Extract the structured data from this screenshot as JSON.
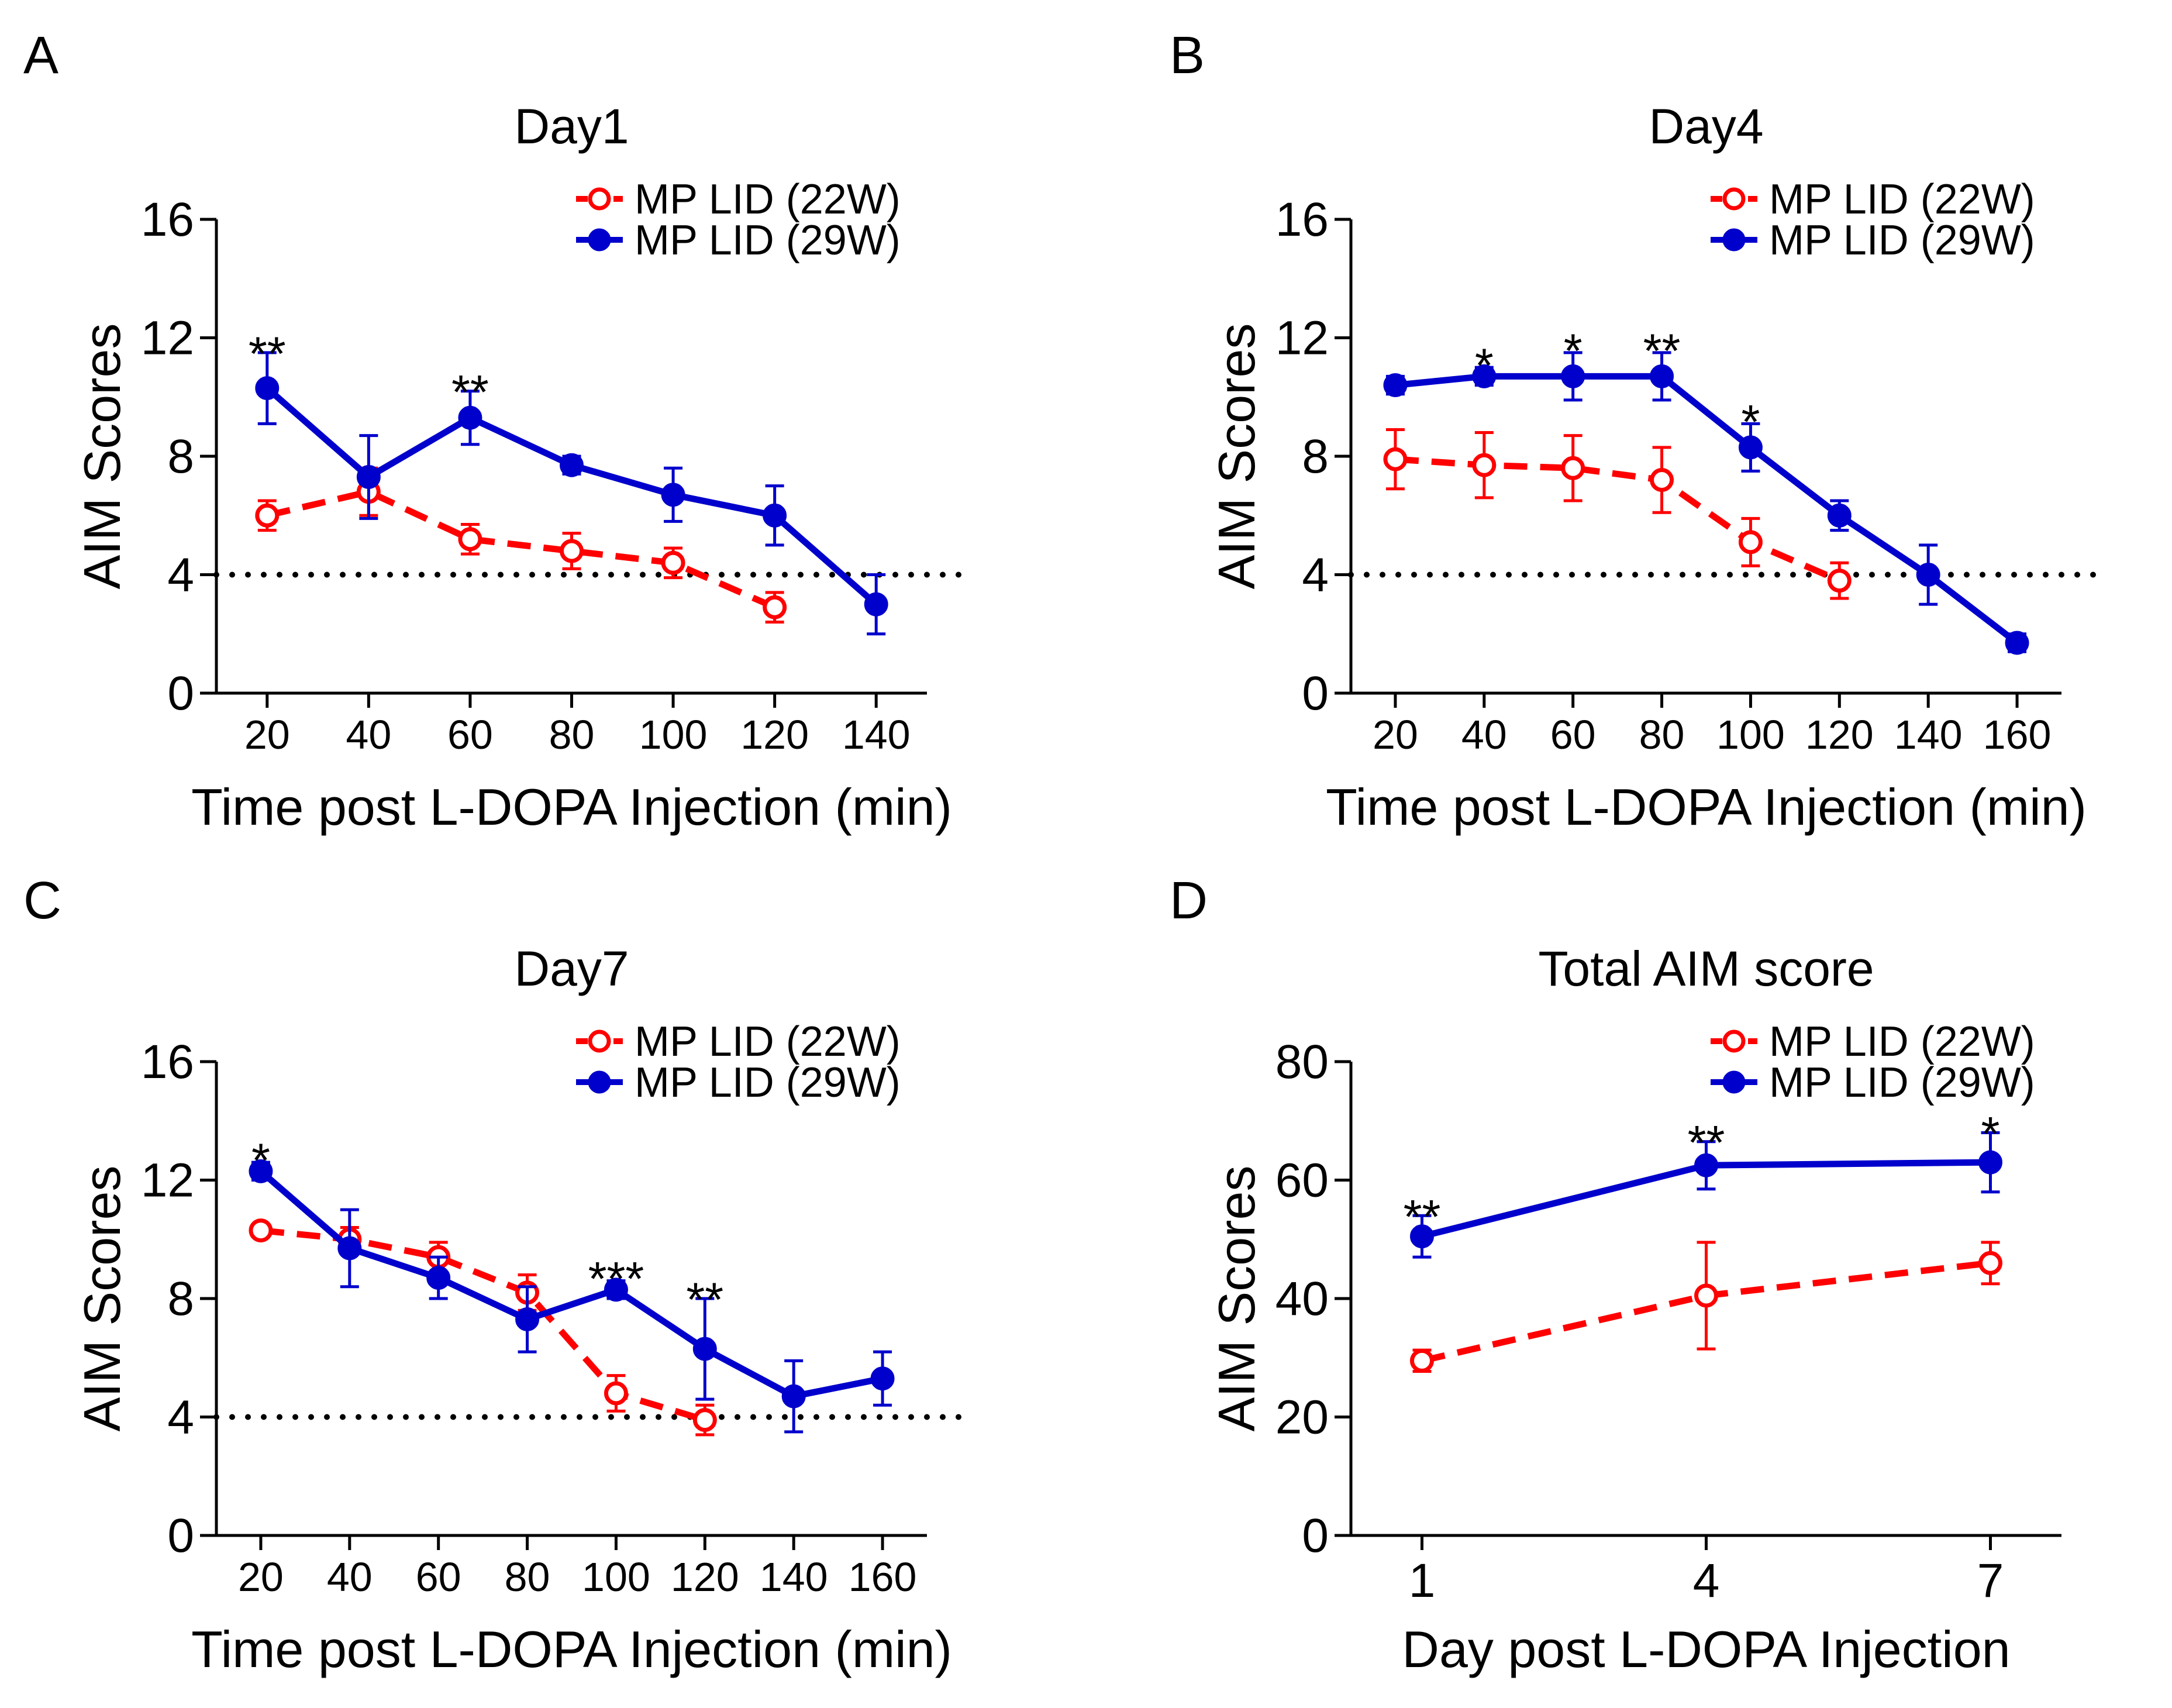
{
  "colors": {
    "series_22w": "#ff0000",
    "series_29w": "#0000cc",
    "axis": "#000000"
  },
  "chart_data": [
    {
      "panel": "A",
      "type": "line",
      "title": "Day1",
      "xlabel": "Time post L-DOPA Injection (min)",
      "ylabel": "AIM Scores",
      "categories": [
        "20",
        "40",
        "60",
        "80",
        "100",
        "120",
        "140"
      ],
      "x_ticks": [
        "20",
        "40",
        "60",
        "80",
        "100",
        "120",
        "140"
      ],
      "ylim": [
        0,
        16
      ],
      "y_ticks": [
        "0",
        "4",
        "8",
        "12",
        "16"
      ],
      "reference_line": 4,
      "legend": "top-right",
      "series": [
        {
          "name": "MP LID (22W)",
          "style": "dashed-open",
          "x": [
            "20",
            "40",
            "60",
            "80",
            "100",
            "120"
          ],
          "values": [
            6.0,
            6.8,
            5.2,
            4.8,
            4.4,
            2.9
          ],
          "errors": [
            0.5,
            0.8,
            0.5,
            0.6,
            0.5,
            0.5
          ]
        },
        {
          "name": "MP LID (29W)",
          "style": "solid-filled",
          "x": [
            "20",
            "40",
            "60",
            "80",
            "100",
            "120",
            "140"
          ],
          "values": [
            10.3,
            7.3,
            9.3,
            7.7,
            6.7,
            6.0,
            3.0
          ],
          "errors": [
            1.2,
            1.4,
            0.9,
            0.3,
            0.9,
            1.0,
            1.0
          ]
        }
      ],
      "annotations": [
        {
          "x": "20",
          "y": 11.5,
          "text": "**"
        },
        {
          "x": "60",
          "y": 10.2,
          "text": "**"
        }
      ]
    },
    {
      "panel": "B",
      "type": "line",
      "title": "Day4",
      "xlabel": "Time post L-DOPA Injection (min)",
      "ylabel": "AIM Scores",
      "categories": [
        "20",
        "40",
        "60",
        "80",
        "100",
        "120",
        "140",
        "160"
      ],
      "x_ticks": [
        "20",
        "40",
        "60",
        "80",
        "100",
        "120",
        "140",
        "160"
      ],
      "ylim": [
        0,
        16
      ],
      "y_ticks": [
        "0",
        "4",
        "8",
        "12",
        "16"
      ],
      "reference_line": 4,
      "legend": "top-right",
      "series": [
        {
          "name": "MP LID (22W)",
          "style": "dashed-open",
          "x": [
            "20",
            "40",
            "60",
            "80",
            "100",
            "120"
          ],
          "values": [
            7.9,
            7.7,
            7.6,
            7.2,
            5.1,
            3.8
          ],
          "errors": [
            1.0,
            1.1,
            1.1,
            1.1,
            0.8,
            0.6
          ]
        },
        {
          "name": "MP LID (29W)",
          "style": "solid-filled",
          "x": [
            "20",
            "40",
            "60",
            "80",
            "100",
            "120",
            "140",
            "160"
          ],
          "values": [
            10.4,
            10.7,
            10.7,
            10.7,
            8.3,
            6.0,
            4.0,
            1.7
          ],
          "errors": [
            0.3,
            0.3,
            0.8,
            0.8,
            0.8,
            0.5,
            1.0,
            0.3
          ]
        }
      ],
      "annotations": [
        {
          "x": "40",
          "y": 11.1,
          "text": "*"
        },
        {
          "x": "60",
          "y": 11.6,
          "text": "*"
        },
        {
          "x": "80",
          "y": 11.6,
          "text": "**"
        },
        {
          "x": "100",
          "y": 9.2,
          "text": "*"
        }
      ]
    },
    {
      "panel": "C",
      "type": "line",
      "title": "Day7",
      "xlabel": "Time post L-DOPA Injection (min)",
      "ylabel": "AIM Scores",
      "categories": [
        "20",
        "40",
        "60",
        "80",
        "100",
        "120",
        "140",
        "160"
      ],
      "x_ticks": [
        "20",
        "40",
        "60",
        "80",
        "100",
        "120",
        "140",
        "160"
      ],
      "ylim": [
        0,
        16
      ],
      "y_ticks": [
        "0",
        "4",
        "8",
        "12",
        "16"
      ],
      "reference_line": 4,
      "legend": "top-right",
      "series": [
        {
          "name": "MP LID (22W)",
          "style": "dashed-open",
          "x": [
            "20",
            "40",
            "60",
            "80",
            "100",
            "120"
          ],
          "values": [
            10.3,
            10.0,
            9.4,
            8.2,
            4.8,
            3.9
          ],
          "errors": [
            0.2,
            0.4,
            0.5,
            0.6,
            0.6,
            0.5
          ]
        },
        {
          "name": "MP LID (29W)",
          "style": "solid-filled",
          "x": [
            "20",
            "40",
            "60",
            "80",
            "100",
            "120",
            "140",
            "160"
          ],
          "values": [
            12.3,
            9.7,
            8.7,
            7.3,
            8.3,
            6.3,
            4.7,
            5.3
          ],
          "errors": [
            0.3,
            1.3,
            0.7,
            1.1,
            0.3,
            1.7,
            1.2,
            0.9
          ]
        }
      ],
      "annotations": [
        {
          "x": "20",
          "y": 12.7,
          "text": "*"
        },
        {
          "x": "100",
          "y": 8.7,
          "text": "***"
        },
        {
          "x": "120",
          "y": 8.0,
          "text": "**"
        }
      ]
    },
    {
      "panel": "D",
      "type": "line",
      "title": "Total AIM score",
      "xlabel": "Day post L-DOPA Injection",
      "ylabel": "AIM Scores",
      "categories": [
        "1",
        "4",
        "7"
      ],
      "x_ticks": [
        "1",
        "4",
        "7"
      ],
      "ylim": [
        0,
        80
      ],
      "y_ticks": [
        "0",
        "20",
        "40",
        "60",
        "80"
      ],
      "legend": "top-right",
      "series": [
        {
          "name": "MP LID (22W)",
          "style": "dashed-open",
          "x": [
            "1",
            "4",
            "7"
          ],
          "values": [
            29.5,
            40.5,
            46.0
          ],
          "errors": [
            1.8,
            9.0,
            3.5
          ]
        },
        {
          "name": "MP LID (29W)",
          "style": "solid-filled",
          "x": [
            "1",
            "4",
            "7"
          ],
          "values": [
            50.5,
            62.5,
            63.0
          ],
          "errors": [
            3.5,
            4.0,
            5.0
          ]
        }
      ],
      "annotations": [
        {
          "x": "1",
          "y": 54,
          "text": "**"
        },
        {
          "x": "4",
          "y": 66.5,
          "text": "**"
        },
        {
          "x": "7",
          "y": 68,
          "text": "*"
        }
      ]
    }
  ]
}
